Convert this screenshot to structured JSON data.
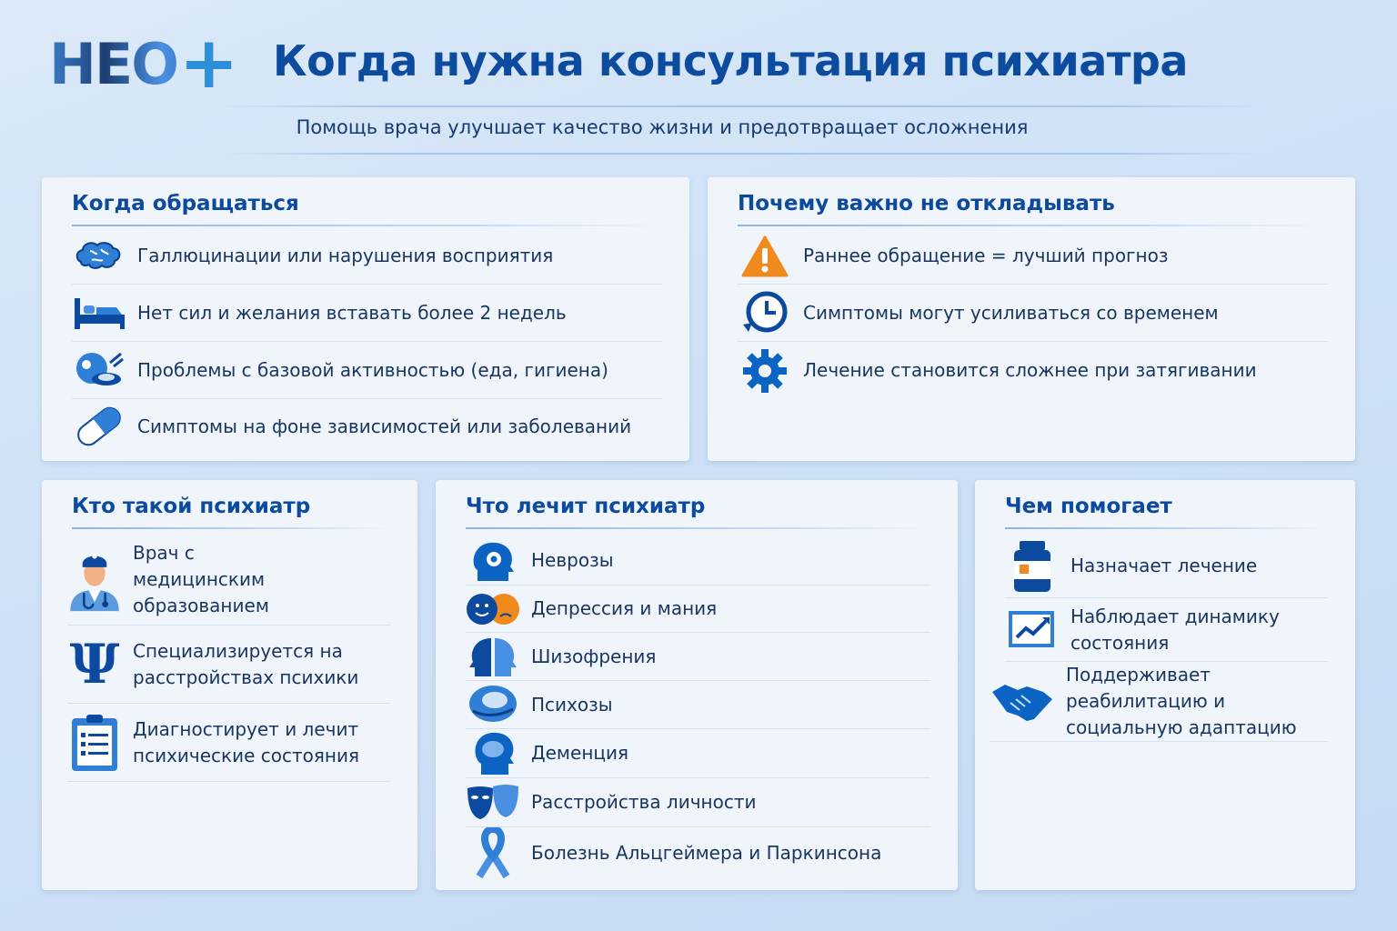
{
  "header": {
    "logo": "НЕО+",
    "title": "Когда нужна консультация психиатра",
    "subtitle": "Помощь врача улучшает качество жизни и предотвращает осложнения"
  },
  "when": {
    "title": "Когда обращаться",
    "items": [
      {
        "icon": "brain-icon",
        "text": "Галлюцинации или нарушения восприятия"
      },
      {
        "icon": "bed-icon",
        "text": "Нет сил и желания вставать более 2 недель"
      },
      {
        "icon": "food-hygiene-icon",
        "text": "Проблемы с базовой активностью (еда, гигиена)"
      },
      {
        "icon": "pill-icon",
        "text": "Симптомы на фоне зависимостей или заболеваний"
      }
    ]
  },
  "why": {
    "title": "Почему важно не откладывать",
    "items": [
      {
        "icon": "warning-icon",
        "text": "Раннее обращение = лучший прогноз"
      },
      {
        "icon": "clock-icon",
        "text": "Симптомы могут усиливаться со временем"
      },
      {
        "icon": "gear-icon",
        "text": "Лечение становится сложнее при затягивании"
      }
    ]
  },
  "who": {
    "title": "Кто такой психиатр",
    "items": [
      {
        "icon": "doctor-icon",
        "text": "Врач с медицинским образованием"
      },
      {
        "icon": "psi-icon",
        "text": "Специализируется на расстройствах психики"
      },
      {
        "icon": "clipboard-icon",
        "text": "Диагностирует и лечит психические состояния"
      }
    ]
  },
  "treats": {
    "title": "Что лечит психиатр",
    "items": [
      {
        "icon": "head-gear-icon",
        "text": "Неврозы"
      },
      {
        "icon": "mood-faces-icon",
        "text": "Депрессия и мания"
      },
      {
        "icon": "split-head-icon",
        "text": "Шизофрения"
      },
      {
        "icon": "head-brain-icon",
        "text": "Психозы"
      },
      {
        "icon": "brain-head-icon",
        "text": "Деменция"
      },
      {
        "icon": "masks-icon",
        "text": "Расстройства личности"
      },
      {
        "icon": "ribbon-icon",
        "text": "Болезнь Альцгеймера и Паркинсона"
      }
    ]
  },
  "helps": {
    "title": "Чем помогает",
    "items": [
      {
        "icon": "medicine-bottle-icon",
        "text": "Назначает лечение"
      },
      {
        "icon": "chart-icon",
        "text": "Наблюдает динамику состояния"
      },
      {
        "icon": "handshake-icon",
        "text": "Поддерживает реабилитацию и социальную адаптацию"
      }
    ]
  },
  "colors": {
    "primary": "#0b4a9e",
    "accent": "#2b8fda",
    "warning": "#f08a1c",
    "background": "#cfe2f6"
  }
}
